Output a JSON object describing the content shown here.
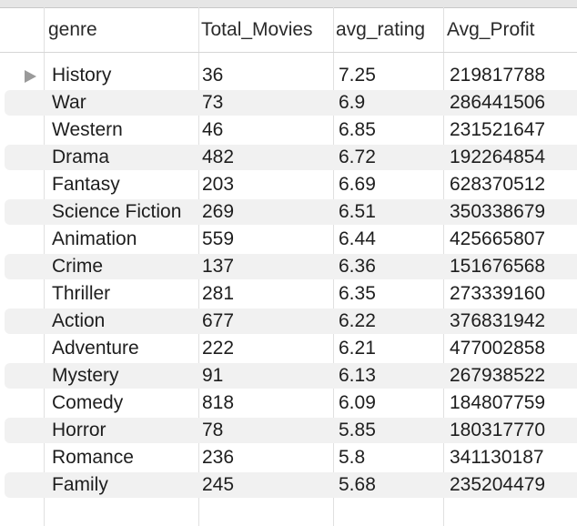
{
  "table": {
    "columns": [
      "genre",
      "Total_Movies",
      "avg_rating",
      "Avg_Profit"
    ],
    "rows": [
      [
        "History",
        "36",
        "7.25",
        "219817788"
      ],
      [
        "War",
        "73",
        "6.9",
        "286441506"
      ],
      [
        "Western",
        "46",
        "6.85",
        "231521647"
      ],
      [
        "Drama",
        "482",
        "6.72",
        "192264854"
      ],
      [
        "Fantasy",
        "203",
        "6.69",
        "628370512"
      ],
      [
        "Science Fiction",
        "269",
        "6.51",
        "350338679"
      ],
      [
        "Animation",
        "559",
        "6.44",
        "425665807"
      ],
      [
        "Crime",
        "137",
        "6.36",
        "151676568"
      ],
      [
        "Thriller",
        "281",
        "6.35",
        "273339160"
      ],
      [
        "Action",
        "677",
        "6.22",
        "376831942"
      ],
      [
        "Adventure",
        "222",
        "6.21",
        "477002858"
      ],
      [
        "Mystery",
        "91",
        "6.13",
        "267938522"
      ],
      [
        "Comedy",
        "818",
        "6.09",
        "184807759"
      ],
      [
        "Horror",
        "78",
        "5.85",
        "180317770"
      ],
      [
        "Romance",
        "236",
        "5.8",
        "341130187"
      ],
      [
        "Family",
        "245",
        "5.68",
        "235204479"
      ]
    ],
    "selected_row_index": 0,
    "row_indicator_icon": "triangle-right-icon"
  },
  "colors": {
    "alt_row": "#f1f1f1",
    "grid_line": "#e0e0e0",
    "indicator": "#9a9a9a"
  }
}
